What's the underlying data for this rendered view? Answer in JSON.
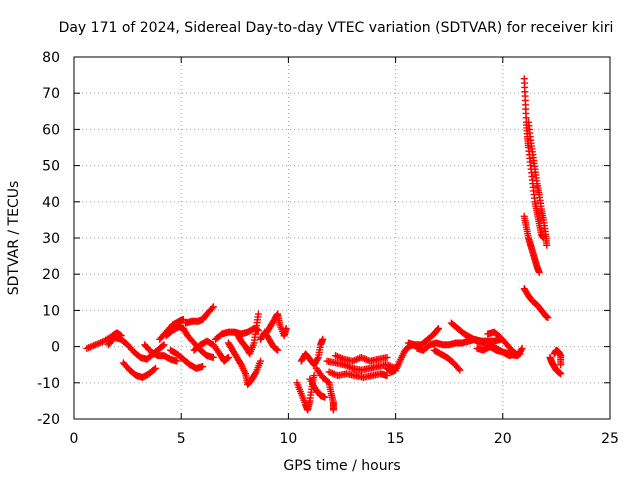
{
  "chart_data": {
    "type": "scatter",
    "title": "Day 171 of 2024, Sidereal Day-to-day VTEC variation (SDTVAR) for receiver kiri",
    "xlabel": "GPS time / hours",
    "ylabel": "SDTVAR / TECUs",
    "xlim": [
      0,
      25
    ],
    "ylim": [
      -20,
      80
    ],
    "xticks": [
      "0",
      "5",
      "10",
      "15",
      "20",
      "25"
    ],
    "yticks": [
      "-20",
      "-10",
      "0",
      "10",
      "20",
      "30",
      "40",
      "50",
      "60",
      "70",
      "80"
    ],
    "grid": true,
    "marker": "+",
    "color": "#ff0000",
    "tracks": [
      {
        "name": "track-a",
        "points": [
          [
            0.6,
            -0.5
          ],
          [
            1.0,
            0.5
          ],
          [
            1.4,
            1.5
          ],
          [
            1.8,
            3.0
          ],
          [
            2.0,
            3.8
          ],
          [
            2.2,
            3.0
          ]
        ]
      },
      {
        "name": "track-b",
        "points": [
          [
            1.6,
            0.5
          ],
          [
            1.9,
            2.5
          ],
          [
            2.2,
            2.0
          ],
          [
            2.5,
            0.5
          ],
          [
            2.8,
            -1.5
          ],
          [
            3.1,
            -3.0
          ],
          [
            3.4,
            -3.5
          ],
          [
            3.7,
            -2.0
          ],
          [
            4.0,
            -0.5
          ],
          [
            4.2,
            0.5
          ]
        ]
      },
      {
        "name": "track-c",
        "points": [
          [
            2.3,
            -4.5
          ],
          [
            2.6,
            -6.5
          ],
          [
            2.9,
            -8.0
          ],
          [
            3.2,
            -8.5
          ],
          [
            3.5,
            -7.5
          ],
          [
            3.8,
            -6.0
          ]
        ]
      },
      {
        "name": "track-d",
        "points": [
          [
            3.3,
            0.5
          ],
          [
            3.6,
            -1.5
          ],
          [
            3.9,
            -2.5
          ],
          [
            4.2,
            -2.5
          ],
          [
            4.5,
            -3.5
          ],
          [
            4.8,
            -4.0
          ]
        ]
      },
      {
        "name": "track-e",
        "points": [
          [
            4.0,
            2.0
          ],
          [
            4.3,
            4.0
          ],
          [
            4.6,
            6.0
          ],
          [
            4.9,
            7.0
          ],
          [
            5.1,
            7.5
          ]
        ]
      },
      {
        "name": "track-f",
        "points": [
          [
            4.3,
            3.0
          ],
          [
            4.6,
            4.5
          ],
          [
            4.9,
            5.5
          ],
          [
            5.1,
            5.0
          ],
          [
            5.3,
            3.0
          ],
          [
            5.6,
            1.0
          ],
          [
            5.9,
            -1.0
          ],
          [
            6.2,
            -2.5
          ],
          [
            6.5,
            -3.0
          ]
        ]
      },
      {
        "name": "track-g",
        "points": [
          [
            4.5,
            -1.0
          ],
          [
            4.8,
            -2.0
          ],
          [
            5.1,
            -3.5
          ],
          [
            5.4,
            -5.0
          ],
          [
            5.7,
            -6.0
          ],
          [
            6.0,
            -5.5
          ]
        ]
      },
      {
        "name": "track-h",
        "points": [
          [
            5.2,
            6.5
          ],
          [
            5.5,
            7.0
          ],
          [
            5.8,
            7.0
          ],
          [
            6.0,
            7.5
          ],
          [
            6.2,
            9.0
          ],
          [
            6.5,
            11.0
          ]
        ]
      },
      {
        "name": "track-i",
        "points": [
          [
            5.6,
            -1.0
          ],
          [
            5.9,
            0.5
          ],
          [
            6.2,
            1.5
          ],
          [
            6.5,
            0.5
          ],
          [
            6.8,
            -2.0
          ],
          [
            7.0,
            -4.0
          ],
          [
            7.2,
            -3.0
          ]
        ]
      },
      {
        "name": "track-j",
        "points": [
          [
            6.6,
            2.0
          ],
          [
            6.9,
            3.5
          ],
          [
            7.2,
            4.0
          ],
          [
            7.5,
            4.0
          ],
          [
            7.8,
            3.5
          ],
          [
            8.1,
            4.0
          ],
          [
            8.4,
            5.0
          ],
          [
            8.6,
            4.5
          ]
        ]
      },
      {
        "name": "track-k",
        "points": [
          [
            7.2,
            1.0
          ],
          [
            7.4,
            -1.0
          ],
          [
            7.6,
            -3.0
          ],
          [
            7.8,
            -5.0
          ],
          [
            8.0,
            -7.5
          ],
          [
            8.1,
            -10.5
          ],
          [
            8.3,
            -9.0
          ],
          [
            8.5,
            -7.0
          ],
          [
            8.7,
            -4.0
          ]
        ]
      },
      {
        "name": "track-l",
        "points": [
          [
            7.6,
            3.5
          ],
          [
            7.8,
            1.5
          ],
          [
            8.0,
            0.0
          ],
          [
            8.2,
            -2.0
          ],
          [
            8.4,
            1.0
          ],
          [
            8.5,
            5.0
          ],
          [
            8.6,
            9.0
          ]
        ]
      },
      {
        "name": "track-m",
        "points": [
          [
            8.7,
            2.0
          ],
          [
            8.9,
            4.0
          ],
          [
            9.1,
            2.0
          ],
          [
            9.3,
            0.0
          ],
          [
            9.5,
            -1.0
          ]
        ]
      },
      {
        "name": "track-n",
        "points": [
          [
            9.0,
            4.0
          ],
          [
            9.2,
            6.0
          ],
          [
            9.4,
            8.0
          ],
          [
            9.5,
            9.0
          ],
          [
            9.6,
            6.0
          ],
          [
            9.8,
            3.0
          ],
          [
            9.9,
            5.0
          ]
        ]
      },
      {
        "name": "track-o",
        "points": [
          [
            10.4,
            -10.0
          ],
          [
            10.6,
            -13.0
          ],
          [
            10.8,
            -16.0
          ],
          [
            10.9,
            -17.5
          ],
          [
            11.0,
            -15.0
          ],
          [
            11.1,
            -11.0
          ],
          [
            11.2,
            -8.0
          ]
        ]
      },
      {
        "name": "track-p",
        "points": [
          [
            10.6,
            -4.0
          ],
          [
            10.8,
            -2.0
          ],
          [
            11.0,
            -3.5
          ],
          [
            11.2,
            -5.0
          ],
          [
            11.4,
            -3.0
          ],
          [
            11.5,
            0.5
          ],
          [
            11.6,
            2.0
          ]
        ]
      },
      {
        "name": "track-q",
        "points": [
          [
            11.3,
            -6.0
          ],
          [
            11.6,
            -8.5
          ],
          [
            11.9,
            -10.0
          ],
          [
            12.0,
            -13.0
          ],
          [
            12.1,
            -15.5
          ],
          [
            12.1,
            -17.5
          ]
        ]
      },
      {
        "name": "track-r",
        "points": [
          [
            11.0,
            -9.0
          ],
          [
            11.3,
            -12.0
          ],
          [
            11.5,
            -13.5
          ],
          [
            11.7,
            -14.0
          ]
        ]
      },
      {
        "name": "track-s",
        "points": [
          [
            11.8,
            -4.0
          ],
          [
            12.2,
            -4.5
          ],
          [
            12.6,
            -5.0
          ],
          [
            13.0,
            -6.0
          ],
          [
            13.4,
            -6.5
          ],
          [
            13.8,
            -6.0
          ],
          [
            14.2,
            -5.5
          ],
          [
            14.6,
            -5.0
          ],
          [
            15.0,
            -6.0
          ]
        ]
      },
      {
        "name": "track-t",
        "points": [
          [
            11.9,
            -7.0
          ],
          [
            12.3,
            -8.0
          ],
          [
            12.7,
            -7.5
          ],
          [
            13.1,
            -8.0
          ],
          [
            13.5,
            -8.5
          ],
          [
            13.9,
            -8.0
          ],
          [
            14.3,
            -7.5
          ],
          [
            14.6,
            -8.0
          ]
        ]
      },
      {
        "name": "track-u",
        "points": [
          [
            12.2,
            -2.5
          ],
          [
            12.6,
            -3.5
          ],
          [
            13.0,
            -4.0
          ],
          [
            13.4,
            -3.0
          ],
          [
            13.8,
            -4.0
          ],
          [
            14.2,
            -3.5
          ],
          [
            14.6,
            -3.0
          ]
        ]
      },
      {
        "name": "track-v",
        "points": [
          [
            14.6,
            -6.0
          ],
          [
            14.8,
            -7.0
          ],
          [
            15.0,
            -6.5
          ],
          [
            15.2,
            -4.0
          ],
          [
            15.4,
            -1.5
          ],
          [
            15.6,
            0.0
          ],
          [
            15.8,
            0.5
          ]
        ]
      },
      {
        "name": "track-w",
        "points": [
          [
            15.6,
            1.0
          ],
          [
            15.9,
            0.5
          ],
          [
            16.2,
            0.5
          ],
          [
            16.5,
            2.0
          ],
          [
            16.8,
            3.5
          ],
          [
            17.0,
            5.0
          ]
        ]
      },
      {
        "name": "track-x",
        "points": [
          [
            16.0,
            -0.5
          ],
          [
            16.3,
            -1.0
          ],
          [
            16.6,
            0.5
          ],
          [
            16.9,
            1.0
          ],
          [
            17.2,
            0.5
          ],
          [
            17.5,
            0.5
          ],
          [
            17.8,
            1.0
          ],
          [
            18.1,
            1.0
          ],
          [
            18.4,
            1.5
          ],
          [
            18.7,
            2.0
          ],
          [
            19.0,
            1.5
          ],
          [
            19.3,
            1.5
          ],
          [
            19.6,
            1.5
          ],
          [
            19.9,
            2.0
          ]
        ]
      },
      {
        "name": "track-y",
        "points": [
          [
            16.8,
            -1.0
          ],
          [
            17.1,
            -2.0
          ],
          [
            17.4,
            -3.0
          ],
          [
            17.7,
            -4.5
          ],
          [
            18.0,
            -6.5
          ]
        ]
      },
      {
        "name": "track-z",
        "points": [
          [
            17.6,
            6.5
          ],
          [
            17.9,
            5.0
          ],
          [
            18.2,
            3.5
          ],
          [
            18.5,
            2.5
          ],
          [
            18.8,
            1.5
          ],
          [
            19.1,
            1.0
          ],
          [
            19.4,
            0.0
          ],
          [
            19.7,
            -0.5
          ],
          [
            20.0,
            -1.5
          ],
          [
            20.3,
            -2.5
          ],
          [
            20.6,
            -2.0
          ]
        ]
      },
      {
        "name": "track-aa",
        "points": [
          [
            19.3,
            3.5
          ],
          [
            19.6,
            4.0
          ],
          [
            19.9,
            2.5
          ],
          [
            20.2,
            0.5
          ],
          [
            20.5,
            -1.5
          ],
          [
            20.7,
            -2.5
          ],
          [
            20.9,
            -0.5
          ]
        ]
      },
      {
        "name": "track-ab",
        "points": [
          [
            18.8,
            -0.5
          ],
          [
            19.1,
            -1.0
          ],
          [
            19.4,
            0.0
          ],
          [
            19.7,
            -1.0
          ],
          [
            20.0,
            -1.5
          ],
          [
            20.3,
            -2.0
          ],
          [
            20.6,
            -2.5
          ],
          [
            20.8,
            -2.0
          ]
        ]
      },
      {
        "name": "track-ac",
        "points": [
          [
            21.0,
            74.0
          ],
          [
            21.05,
            68.0
          ],
          [
            21.1,
            62.0
          ],
          [
            21.15,
            58.0
          ],
          [
            21.2,
            55.0
          ],
          [
            21.3,
            50.0
          ],
          [
            21.4,
            45.0
          ],
          [
            21.5,
            40.0
          ],
          [
            21.6,
            37.0
          ],
          [
            21.7,
            34.0
          ],
          [
            21.8,
            31.0
          ],
          [
            21.9,
            30.0
          ]
        ]
      },
      {
        "name": "track-ad",
        "points": [
          [
            21.2,
            62.0
          ],
          [
            21.3,
            57.0
          ],
          [
            21.4,
            53.0
          ],
          [
            21.5,
            49.0
          ],
          [
            21.6,
            45.0
          ],
          [
            21.7,
            42.0
          ],
          [
            21.8,
            38.0
          ],
          [
            21.9,
            35.0
          ],
          [
            22.0,
            31.0
          ],
          [
            22.05,
            28.0
          ]
        ]
      },
      {
        "name": "track-ae",
        "points": [
          [
            21.0,
            36.0
          ],
          [
            21.1,
            33.0
          ],
          [
            21.2,
            30.0
          ],
          [
            21.3,
            28.0
          ],
          [
            21.4,
            26.0
          ],
          [
            21.5,
            24.0
          ],
          [
            21.6,
            22.0
          ],
          [
            21.7,
            20.5
          ]
        ]
      },
      {
        "name": "track-af",
        "points": [
          [
            21.0,
            16.0
          ],
          [
            21.2,
            14.0
          ],
          [
            21.4,
            12.5
          ],
          [
            21.6,
            11.5
          ],
          [
            21.8,
            10.0
          ],
          [
            22.0,
            8.5
          ],
          [
            22.1,
            8.0
          ]
        ]
      },
      {
        "name": "track-ag",
        "points": [
          [
            22.2,
            -3.0
          ],
          [
            22.3,
            -4.5
          ],
          [
            22.4,
            -5.5
          ],
          [
            22.5,
            -6.5
          ],
          [
            22.6,
            -7.0
          ],
          [
            22.7,
            -7.5
          ]
        ]
      },
      {
        "name": "track-ah",
        "points": [
          [
            22.4,
            -2.0
          ],
          [
            22.5,
            -1.0
          ],
          [
            22.6,
            -1.5
          ],
          [
            22.7,
            -2.5
          ],
          [
            22.7,
            -5.0
          ]
        ]
      }
    ]
  }
}
